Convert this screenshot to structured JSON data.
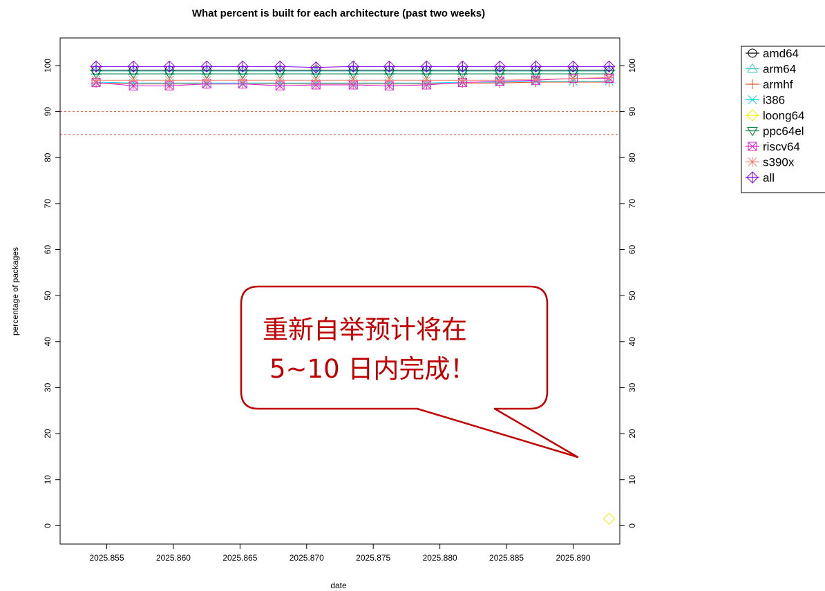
{
  "chart_data": {
    "type": "line",
    "title": "What percent is built for each architecture (past two weeks)",
    "xlabel": "date",
    "ylabel": "percentage of packages",
    "x_ticks": [
      "2025.855",
      "2025.860",
      "2025.865",
      "2025.870",
      "2025.875",
      "2025.880",
      "2025.885",
      "2025.890"
    ],
    "y_ticks": [
      "0",
      "10",
      "20",
      "30",
      "40",
      "50",
      "60",
      "70",
      "80",
      "90",
      "100"
    ],
    "xlim": [
      2025.8515,
      2025.8935
    ],
    "ylim": [
      -4,
      106
    ],
    "x": [
      2025.8542,
      2025.857,
      2025.8597,
      2025.8625,
      2025.8652,
      2025.868,
      2025.8707,
      2025.8735,
      2025.8762,
      2025.879,
      2025.8817,
      2025.8845,
      2025.8872,
      2025.89,
      2025.8927
    ],
    "reference_lines": [
      90,
      85
    ],
    "reference_line_color": "#e0553a",
    "legend_position": "right",
    "series": [
      {
        "name": "amd64",
        "color": "#000000",
        "marker": "circle-line",
        "values": [
          99.0,
          99.0,
          99.0,
          99.0,
          99.0,
          99.0,
          99.0,
          99.0,
          99.0,
          99.0,
          99.0,
          99.0,
          99.0,
          99.0,
          99.0
        ]
      },
      {
        "name": "arm64",
        "color": "#38c8c0",
        "marker": "triangle-up",
        "values": [
          98.8,
          98.8,
          98.8,
          98.8,
          98.8,
          98.8,
          98.8,
          98.8,
          98.8,
          98.8,
          98.8,
          98.8,
          98.8,
          98.8,
          98.8
        ]
      },
      {
        "name": "armhf",
        "color": "#e8501e",
        "marker": "plus",
        "values": [
          96.2,
          96.0,
          96.0,
          96.0,
          96.0,
          96.0,
          96.0,
          96.0,
          96.0,
          96.0,
          96.2,
          96.2,
          96.4,
          96.4,
          96.4
        ]
      },
      {
        "name": "i386",
        "color": "#00d8f0",
        "marker": "x",
        "values": [
          96.4,
          96.2,
          96.2,
          96.2,
          96.2,
          96.2,
          96.2,
          96.2,
          96.2,
          96.2,
          96.4,
          96.4,
          96.6,
          96.6,
          96.6
        ]
      },
      {
        "name": "loong64",
        "color": "#f0f000",
        "marker": "diamond",
        "x": [
          2025.8927
        ],
        "values": [
          1.5
        ]
      },
      {
        "name": "ppc64el",
        "color": "#008040",
        "marker": "triangle-down",
        "values": [
          98.2,
          98.2,
          98.2,
          98.2,
          98.2,
          98.2,
          98.2,
          98.2,
          98.2,
          98.2,
          98.2,
          98.2,
          98.2,
          98.2,
          98.2
        ]
      },
      {
        "name": "riscv64",
        "color": "#e020d0",
        "marker": "square-x",
        "values": [
          96.3,
          95.6,
          95.6,
          96.0,
          96.0,
          95.6,
          95.8,
          95.8,
          95.6,
          95.8,
          96.3,
          96.6,
          96.8,
          97.2,
          97.2
        ]
      },
      {
        "name": "s390x",
        "color": "#f08070",
        "marker": "star",
        "values": [
          96.8,
          96.8,
          96.8,
          96.8,
          96.8,
          96.8,
          96.8,
          96.8,
          96.8,
          96.8,
          96.8,
          96.8,
          97.0,
          97.2,
          97.4
        ]
      },
      {
        "name": "all",
        "color": "#8000f0",
        "marker": "diamond-plus",
        "values": [
          99.8,
          99.8,
          99.8,
          99.8,
          99.8,
          99.8,
          99.6,
          99.8,
          99.8,
          99.8,
          99.8,
          99.8,
          99.8,
          99.8,
          99.8
        ]
      }
    ],
    "legend_labels": [
      "amd64",
      "arm64",
      "armhf",
      "i386",
      "loong64",
      "ppc64el",
      "riscv64",
      "s390x",
      "all"
    ],
    "annotation": {
      "line1": "重新自举预计将在",
      "line2": "5~10 日内完成！",
      "color": "#c00000"
    }
  }
}
